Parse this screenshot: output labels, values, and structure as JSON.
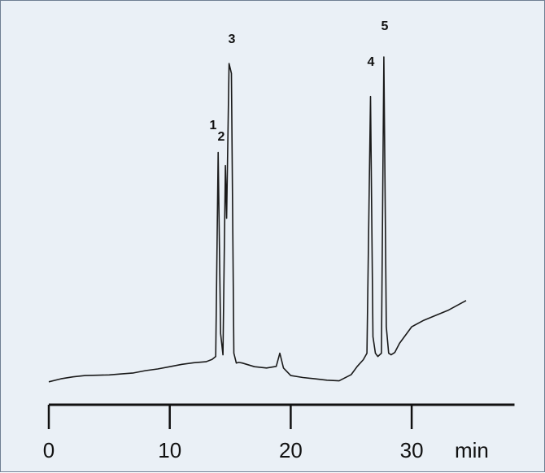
{
  "chart_data": {
    "type": "line",
    "title": "",
    "xlabel": "",
    "ylabel": "",
    "x_unit": "min",
    "xlim": [
      0,
      38.5
    ],
    "xticks": [
      0,
      10,
      20,
      30
    ],
    "grid": false,
    "legend": "none",
    "series": [
      {
        "x": [
          0,
          1,
          2,
          3,
          4,
          5,
          6,
          7,
          8,
          9,
          10,
          11,
          12,
          13,
          13.5,
          13.8,
          14.0,
          14.2,
          14.4,
          14.6,
          14.7,
          14.9,
          15.1,
          15.3,
          15.5,
          15.7,
          16,
          17,
          18,
          18.8,
          19.1,
          19.4,
          20,
          21,
          22,
          23,
          24,
          25,
          25.5,
          26,
          26.3,
          26.6,
          26.8,
          27.0,
          27.2,
          27.5,
          27.7,
          27.9,
          28.1,
          28.3,
          28.6,
          29,
          30,
          31,
          32,
          33,
          34,
          34.5
        ],
        "y": [
          0.3,
          1.2,
          1.8,
          2.2,
          2.3,
          2.4,
          2.7,
          3.0,
          3.7,
          4.2,
          4.9,
          5.6,
          6.1,
          6.4,
          7.1,
          8.0,
          70.0,
          15.0,
          8.5,
          66.0,
          50.0,
          97.0,
          94.0,
          9.0,
          6.0,
          6.2,
          6.0,
          4.9,
          4.5,
          5.0,
          9.0,
          4.5,
          2.2,
          1.6,
          1.2,
          0.8,
          0.6,
          2.5,
          5.0,
          7.0,
          9.0,
          87.0,
          14.0,
          9.0,
          8.0,
          9.0,
          99.0,
          17.0,
          9.0,
          8.5,
          9.2,
          12.0,
          17.0,
          19.0,
          20.5,
          22.0,
          24.0,
          25.0
        ]
      }
    ],
    "peaks": [
      {
        "label": "1",
        "x": 14.0
      },
      {
        "label": "2",
        "x": 14.6
      },
      {
        "label": "3",
        "x": 15.0
      },
      {
        "label": "4",
        "x": 26.6
      },
      {
        "label": "5",
        "x": 27.7
      }
    ]
  }
}
